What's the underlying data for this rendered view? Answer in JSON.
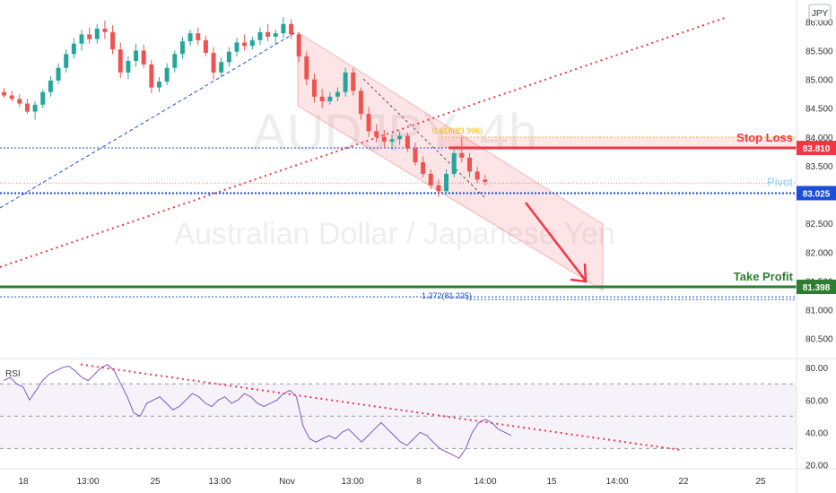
{
  "currency": "JPY",
  "watermark": {
    "symbol": "AUDJPY, 4h",
    "name": "Australian Dollar / Japanese Yen"
  },
  "colors": {
    "bull": "#26a69a",
    "bear": "#ef5350",
    "red": "#f23645",
    "green": "#2e7d32",
    "blue": "#1e4ed8",
    "pivot_label": "#90caf9",
    "rsi": "#7e57c2"
  },
  "chart_data": [
    {
      "type": "candlestick",
      "ylim": [
        80.2,
        86.3
      ],
      "y_ticks": [
        "86.000",
        "85.500",
        "85.000",
        "84.500",
        "84.000",
        "83.500",
        "83.000",
        "82.500",
        "82.000",
        "81.500",
        "81.000",
        "80.500"
      ],
      "x_ticks": [
        "18",
        "13:00",
        "25",
        "13:00",
        "Nov",
        "13:00",
        "8",
        "14:00",
        "15",
        "14:00",
        "22",
        "25"
      ],
      "levels": [
        {
          "name": "Stop Loss",
          "label": "Stop Loss",
          "value": 83.81,
          "price_tag": "83.810"
        },
        {
          "name": "Pivot",
          "label": "Pivot",
          "value": 83.025,
          "price_tag": "83.025"
        },
        {
          "name": "Take Profit",
          "label": "Take Profit",
          "value": 81.398,
          "price_tag": "81.398"
        }
      ],
      "fib_labels": [
        {
          "text": "0.618(83.996)",
          "value": 83.996
        },
        {
          "text": "1.272(81.225)",
          "value": 81.225
        }
      ],
      "trend": "descending channel",
      "candles": [
        [
          84.78,
          84.85,
          84.68,
          84.72
        ],
        [
          84.72,
          84.8,
          84.62,
          84.66
        ],
        [
          84.66,
          84.74,
          84.52,
          84.58
        ],
        [
          84.58,
          84.66,
          84.4,
          84.44
        ],
        [
          84.44,
          84.62,
          84.3,
          84.56
        ],
        [
          84.56,
          84.82,
          84.5,
          84.78
        ],
        [
          84.78,
          85.06,
          84.7,
          84.98
        ],
        [
          84.98,
          85.28,
          84.92,
          85.2
        ],
        [
          85.2,
          85.52,
          85.12,
          85.44
        ],
        [
          85.44,
          85.72,
          85.36,
          85.62
        ],
        [
          85.62,
          85.86,
          85.5,
          85.78
        ],
        [
          85.78,
          85.9,
          85.62,
          85.7
        ],
        [
          85.7,
          85.96,
          85.62,
          85.88
        ],
        [
          85.88,
          86.02,
          85.7,
          85.82
        ],
        [
          85.82,
          85.94,
          85.44,
          85.52
        ],
        [
          85.52,
          85.64,
          85.02,
          85.12
        ],
        [
          85.12,
          85.4,
          85.0,
          85.32
        ],
        [
          85.32,
          85.62,
          85.22,
          85.5
        ],
        [
          85.5,
          85.6,
          85.2,
          85.26
        ],
        [
          85.26,
          85.34,
          84.76,
          84.86
        ],
        [
          84.86,
          85.04,
          84.78,
          84.96
        ],
        [
          84.96,
          85.28,
          84.9,
          85.2
        ],
        [
          85.2,
          85.5,
          85.12,
          85.44
        ],
        [
          85.44,
          85.74,
          85.36,
          85.66
        ],
        [
          85.66,
          85.86,
          85.58,
          85.8
        ],
        [
          85.8,
          85.9,
          85.6,
          85.68
        ],
        [
          85.68,
          85.76,
          85.4,
          85.46
        ],
        [
          85.46,
          85.56,
          85.0,
          85.12
        ],
        [
          85.12,
          85.38,
          85.04,
          85.3
        ],
        [
          85.3,
          85.56,
          85.22,
          85.48
        ],
        [
          85.48,
          85.72,
          85.4,
          85.64
        ],
        [
          85.64,
          85.78,
          85.5,
          85.58
        ],
        [
          85.58,
          85.74,
          85.52,
          85.68
        ],
        [
          85.68,
          85.9,
          85.6,
          85.82
        ],
        [
          85.82,
          85.96,
          85.66,
          85.74
        ],
        [
          85.74,
          85.86,
          85.62,
          85.8
        ],
        [
          85.8,
          86.08,
          85.72,
          85.96
        ],
        [
          85.96,
          86.04,
          85.7,
          85.78
        ],
        [
          85.78,
          85.82,
          85.3,
          85.4
        ],
        [
          85.4,
          85.48,
          84.9,
          85.0
        ],
        [
          85.0,
          85.1,
          84.6,
          84.7
        ],
        [
          84.7,
          84.84,
          84.5,
          84.62
        ],
        [
          84.62,
          84.78,
          84.56,
          84.7
        ],
        [
          84.7,
          84.86,
          84.62,
          84.78
        ],
        [
          84.78,
          85.2,
          84.7,
          85.12
        ],
        [
          85.12,
          85.2,
          84.72,
          84.8
        ],
        [
          84.8,
          84.86,
          84.3,
          84.4
        ],
        [
          84.4,
          84.52,
          84.0,
          84.1
        ],
        [
          84.1,
          84.22,
          83.9,
          84.0
        ],
        [
          84.0,
          84.12,
          83.82,
          83.92
        ],
        [
          83.92,
          84.04,
          83.78,
          83.96
        ],
        [
          83.96,
          84.1,
          83.86,
          84.02
        ],
        [
          84.02,
          84.08,
          83.74,
          83.8
        ],
        [
          83.8,
          83.9,
          83.5,
          83.56
        ],
        [
          83.56,
          83.66,
          83.3,
          83.36
        ],
        [
          83.36,
          83.44,
          83.1,
          83.16
        ],
        [
          83.16,
          83.26,
          82.96,
          83.06
        ],
        [
          83.06,
          83.44,
          83.0,
          83.36
        ],
        [
          83.36,
          83.8,
          83.3,
          83.72
        ],
        [
          83.72,
          84.0,
          83.56,
          83.64
        ],
        [
          83.64,
          83.72,
          83.3,
          83.4
        ],
        [
          83.4,
          83.48,
          83.2,
          83.26
        ],
        [
          83.26,
          83.34,
          83.16,
          83.22
        ]
      ]
    },
    {
      "type": "line",
      "name": "RSI",
      "label": "RSI",
      "ylim": [
        18,
        84
      ],
      "y_ticks": [
        "80.00",
        "60.00",
        "40.00",
        "20.00"
      ],
      "levels": [
        70,
        50,
        30
      ],
      "values": [
        72,
        74,
        70,
        68,
        60,
        66,
        72,
        76,
        78,
        80,
        81,
        78,
        74,
        72,
        76,
        80,
        82,
        78,
        70,
        62,
        52,
        50,
        58,
        60,
        62,
        58,
        54,
        56,
        60,
        64,
        62,
        58,
        56,
        60,
        62,
        58,
        60,
        64,
        62,
        58,
        56,
        58,
        60,
        64,
        66,
        62,
        44,
        36,
        34,
        36,
        38,
        36,
        40,
        42,
        38,
        34,
        38,
        42,
        46,
        42,
        38,
        34,
        32,
        36,
        40,
        38,
        34,
        30,
        28,
        26,
        24,
        30,
        40,
        46,
        48,
        46,
        42,
        40,
        38
      ]
    }
  ]
}
